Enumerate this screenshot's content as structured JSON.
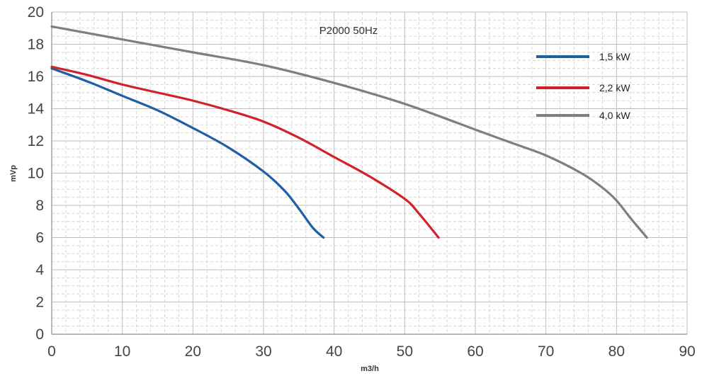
{
  "chart_data": {
    "type": "line",
    "title": "P2000 50Hz",
    "xlabel": "m3/h",
    "ylabel": "mVp",
    "xlim": [
      0,
      90
    ],
    "ylim": [
      0,
      20
    ],
    "x_ticks": [
      0,
      10,
      20,
      30,
      40,
      50,
      60,
      70,
      80,
      90
    ],
    "y_ticks": [
      0,
      2,
      4,
      6,
      8,
      10,
      12,
      14,
      16,
      18,
      20
    ],
    "grid": true,
    "legend_position": "top-right",
    "series": [
      {
        "name": "1,5 kW",
        "color": "#1f5fa3",
        "points": [
          [
            0,
            16.5
          ],
          [
            5,
            15.7
          ],
          [
            10,
            14.8
          ],
          [
            15,
            13.9
          ],
          [
            20,
            12.8
          ],
          [
            25,
            11.6
          ],
          [
            30,
            10.1
          ],
          [
            33,
            8.9
          ],
          [
            35,
            7.8
          ],
          [
            37,
            6.6
          ],
          [
            38.5,
            6.0
          ]
        ]
      },
      {
        "name": "2,2 kW",
        "color": "#d02228",
        "points": [
          [
            0,
            16.6
          ],
          [
            5,
            16.1
          ],
          [
            10,
            15.5
          ],
          [
            15,
            15.0
          ],
          [
            20,
            14.5
          ],
          [
            25,
            13.9
          ],
          [
            30,
            13.2
          ],
          [
            35,
            12.2
          ],
          [
            40,
            11.0
          ],
          [
            45,
            9.8
          ],
          [
            50,
            8.4
          ],
          [
            52,
            7.5
          ],
          [
            54.8,
            6.0
          ]
        ]
      },
      {
        "name": "4,0 kW",
        "color": "#7f7f7f",
        "points": [
          [
            0,
            19.1
          ],
          [
            10,
            18.3
          ],
          [
            20,
            17.5
          ],
          [
            30,
            16.7
          ],
          [
            40,
            15.6
          ],
          [
            50,
            14.3
          ],
          [
            60,
            12.7
          ],
          [
            65,
            11.9
          ],
          [
            70,
            11.1
          ],
          [
            75,
            10.0
          ],
          [
            78,
            9.1
          ],
          [
            80,
            8.3
          ],
          [
            82,
            7.2
          ],
          [
            84.3,
            6.0
          ]
        ]
      }
    ]
  }
}
